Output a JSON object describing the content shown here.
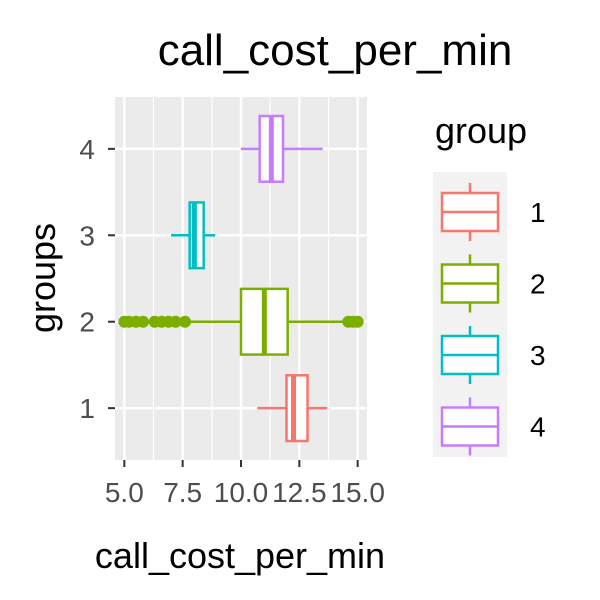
{
  "chart_data": {
    "type": "boxplot",
    "orientation": "horizontal",
    "title": "call_cost_per_min",
    "xlabel": "call_cost_per_min",
    "ylabel": "groups",
    "xlim": [
      4.6,
      15.4
    ],
    "x_ticks": [
      5.0,
      7.5,
      10.0,
      12.5,
      15.0
    ],
    "x_tick_labels": [
      "5.0",
      "7.5",
      "10.0",
      "12.5",
      "15.0"
    ],
    "y_ticks": [
      "1",
      "2",
      "3",
      "4"
    ],
    "grid": true,
    "legend_position": "right",
    "legend_title": "group",
    "series": [
      {
        "name": "1",
        "color": "#F8766D",
        "whisker_low": 10.7,
        "q1": 11.95,
        "median": 12.25,
        "q3": 12.85,
        "whisker_high": 13.7,
        "outliers": []
      },
      {
        "name": "2",
        "color": "#7CAE00",
        "whisker_low": 5.0,
        "q1": 10.0,
        "median": 11.0,
        "q3": 12.0,
        "whisker_high": 15.0,
        "outliers": [
          5.0,
          5.2,
          5.5,
          5.8,
          6.3,
          6.6,
          6.9,
          7.2,
          7.6,
          14.6,
          14.8,
          15.0
        ]
      },
      {
        "name": "3",
        "color": "#00BFC4",
        "whisker_low": 7.0,
        "q1": 7.8,
        "median": 8.0,
        "q3": 8.4,
        "whisker_high": 8.9,
        "outliers": []
      },
      {
        "name": "4",
        "color": "#C77CFF",
        "whisker_low": 10.0,
        "q1": 10.8,
        "median": 11.3,
        "q3": 11.8,
        "whisker_high": 13.5,
        "outliers": []
      }
    ]
  }
}
